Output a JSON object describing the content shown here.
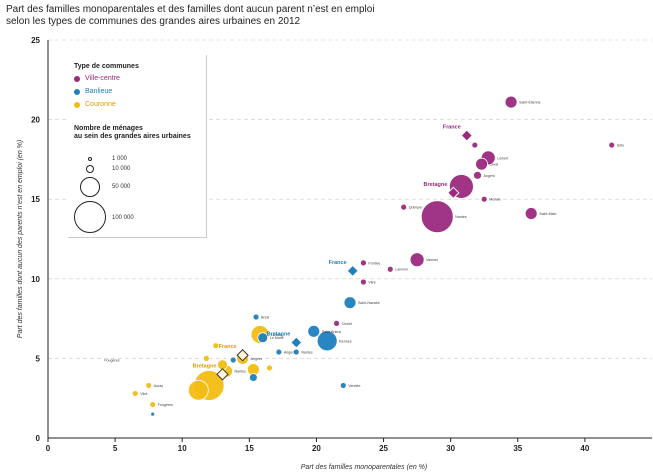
{
  "title_line1": "Part des familles monoparentales et des familles dont aucun parent n’est en emploi",
  "title_line2": "selon les types de communes des grandes aires urbaines en 2012",
  "legend": {
    "type_title": "Type de communes",
    "types": [
      {
        "label": "Ville-centre",
        "color": "#9b2a7e",
        "text_color": "#9b2a7e"
      },
      {
        "label": "Banlieue",
        "color": "#1f7fc0",
        "text_color": "#1f7fc0"
      },
      {
        "label": "Couronne",
        "color": "#f2bd13",
        "text_color": "#e49a00"
      }
    ],
    "size_title_1": "Nombre de ménages",
    "size_title_2": "au sein des grandes aires urbaines",
    "sizes": [
      "1 000",
      "10 000",
      "50 000",
      "100 000"
    ]
  },
  "chart_data": {
    "type": "scatter",
    "xlabel": "Part des familles monoparentales (en %)",
    "ylabel": "Part des familles dont aucun des parents n’est en emploi (en %)",
    "xlim": [
      0,
      45
    ],
    "ylim": [
      0,
      25
    ],
    "xticks": [
      "0",
      "5",
      "10",
      "15",
      "20",
      "25",
      "30",
      "35",
      "40"
    ],
    "yticks": [
      "0",
      "5",
      "10",
      "15",
      "20",
      "25"
    ],
    "grid": "horizontal-dashed",
    "series": [
      {
        "name": "Ville-centre",
        "color": "#9b2a7e",
        "points": [
          {
            "x": 34.5,
            "y": 21.1,
            "r": 6,
            "label": "Saint-Étienne"
          },
          {
            "x": 42.0,
            "y": 18.4,
            "r": 3,
            "label": "Sète"
          },
          {
            "x": 31.8,
            "y": 18.4,
            "r": 3,
            "label": ""
          },
          {
            "x": 32.8,
            "y": 17.6,
            "r": 7,
            "label": "Lorient"
          },
          {
            "x": 32.3,
            "y": 17.2,
            "r": 6,
            "label": "Laval"
          },
          {
            "x": 32.0,
            "y": 16.5,
            "r": 4,
            "label": "Angers"
          },
          {
            "x": 30.8,
            "y": 15.8,
            "r": 12,
            "label": ""
          },
          {
            "x": 32.5,
            "y": 15.0,
            "r": 3,
            "label": "Morlaix"
          },
          {
            "x": 36.0,
            "y": 14.1,
            "r": 6,
            "label": "Saint-Malo"
          },
          {
            "x": 29.0,
            "y": 13.9,
            "r": 16,
            "label": "Nantes"
          },
          {
            "x": 26.5,
            "y": 14.5,
            "r": 3,
            "label": "Quimper"
          },
          {
            "x": 27.5,
            "y": 11.2,
            "r": 7,
            "label": "Vannes"
          },
          {
            "x": 25.5,
            "y": 10.6,
            "r": 3,
            "label": "Lannion"
          },
          {
            "x": 23.5,
            "y": 11.0,
            "r": 3,
            "label": "Pontivy"
          },
          {
            "x": 23.5,
            "y": 9.8,
            "r": 3,
            "label": "Vitré"
          },
          {
            "x": 21.5,
            "y": 7.2,
            "r": 3,
            "label": "Cholet"
          }
        ]
      },
      {
        "name": "Banlieue",
        "color": "#1f7fc0",
        "points": [
          {
            "x": 22.5,
            "y": 8.5,
            "r": 6,
            "label": "Saint-Nazaire"
          },
          {
            "x": 19.8,
            "y": 6.7,
            "r": 6,
            "label": "Saint-Brieuc"
          },
          {
            "x": 20.8,
            "y": 6.1,
            "r": 10,
            "label": "Rennes"
          },
          {
            "x": 16.0,
            "y": 6.3,
            "r": 5,
            "label": "Le Mans"
          },
          {
            "x": 15.5,
            "y": 7.6,
            "r": 3,
            "label": "Brest"
          },
          {
            "x": 18.5,
            "y": 5.4,
            "r": 3,
            "label": "Nantes"
          },
          {
            "x": 17.2,
            "y": 5.4,
            "r": 3,
            "label": "Angers"
          },
          {
            "x": 15.3,
            "y": 3.8,
            "r": 4,
            "label": ""
          },
          {
            "x": 13.8,
            "y": 4.9,
            "r": 3,
            "label": ""
          },
          {
            "x": 22.0,
            "y": 3.3,
            "r": 3,
            "label": "Vendée"
          },
          {
            "x": 7.8,
            "y": 1.5,
            "r": 2,
            "label": ""
          }
        ]
      },
      {
        "name": "Couronne",
        "color": "#f2bd13",
        "points": [
          {
            "x": 12.0,
            "y": 3.3,
            "r": 15,
            "label": ""
          },
          {
            "x": 11.2,
            "y": 3.0,
            "r": 10,
            "label": ""
          },
          {
            "x": 15.8,
            "y": 6.5,
            "r": 9,
            "label": "Lorient"
          },
          {
            "x": 14.5,
            "y": 5.0,
            "r": 6,
            "label": "Angers"
          },
          {
            "x": 13.3,
            "y": 4.2,
            "r": 6,
            "label": "Nantes"
          },
          {
            "x": 15.3,
            "y": 4.3,
            "r": 6,
            "label": ""
          },
          {
            "x": 13.0,
            "y": 4.6,
            "r": 5,
            "label": ""
          },
          {
            "x": 12.5,
            "y": 5.8,
            "r": 3,
            "label": ""
          },
          {
            "x": 11.8,
            "y": 5.0,
            "r": 3,
            "label": ""
          },
          {
            "x": 16.5,
            "y": 4.4,
            "r": 3,
            "label": ""
          },
          {
            "x": 7.5,
            "y": 3.3,
            "r": 3,
            "label": "Auray"
          },
          {
            "x": 6.5,
            "y": 2.8,
            "r": 3,
            "label": "Vitré"
          },
          {
            "x": 7.8,
            "y": 2.1,
            "r": 3,
            "label": "Fougères"
          }
        ]
      }
    ],
    "references": [
      {
        "label": "France",
        "x": 31.2,
        "y": 19.0,
        "color": "#9b2a7e"
      },
      {
        "label": "Bretagne",
        "x": 30.2,
        "y": 15.4,
        "color": "#9b2a7e"
      },
      {
        "label": "France",
        "x": 22.7,
        "y": 10.5,
        "color": "#1f7fc0"
      },
      {
        "label": "Bretagne",
        "x": 18.5,
        "y": 6.0,
        "color": "#1f7fc0"
      },
      {
        "label": "France",
        "x": 14.5,
        "y": 5.2,
        "color": "#e49a00"
      },
      {
        "label": "Bretagne",
        "x": 13.0,
        "y": 4.0,
        "color": "#e49a00"
      }
    ],
    "stray_label": "Fougères"
  }
}
